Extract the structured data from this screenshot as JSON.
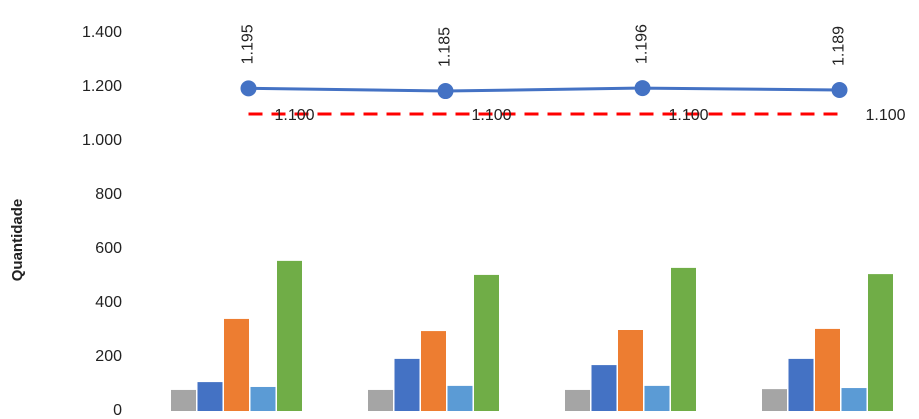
{
  "chart_data": {
    "type": "bar",
    "y_label": "Quantidade",
    "categories": [
      null,
      null,
      null,
      null
    ],
    "series": [
      {
        "color": "#a5a5a5",
        "values": [
          78,
          78,
          78,
          81
        ]
      },
      {
        "color": "#4472c4",
        "values": [
          107,
          193,
          170,
          193
        ]
      },
      {
        "color": "#ed7d31",
        "values": [
          341,
          296,
          300,
          304
        ]
      },
      {
        "color": "#5b9bd5",
        "values": [
          89,
          93,
          93,
          85
        ]
      },
      {
        "color": "#70ad47",
        "values": [
          556,
          504,
          530,
          507
        ]
      },
      {
        "type": "line",
        "color": "#4472c4",
        "values": [
          1195,
          1185,
          1196,
          1189
        ],
        "value_labels": [
          "1.195",
          "1.185",
          "1.196",
          "1.189"
        ]
      },
      {
        "type": "line",
        "color": "#ff0000",
        "dashed": true,
        "values": [
          1100,
          1100,
          1100,
          1100
        ],
        "value_labels": [
          "1.100",
          "1.100",
          "1.100",
          "1.100"
        ]
      }
    ],
    "ylim": [
      0,
      1400
    ],
    "yticks": [
      0,
      200,
      400,
      600,
      800,
      {
        "value": 1000,
        "label": "1.000"
      },
      {
        "value": 1200,
        "label": "1.200"
      },
      {
        "value": 1400,
        "label": "1.400"
      }
    ]
  }
}
